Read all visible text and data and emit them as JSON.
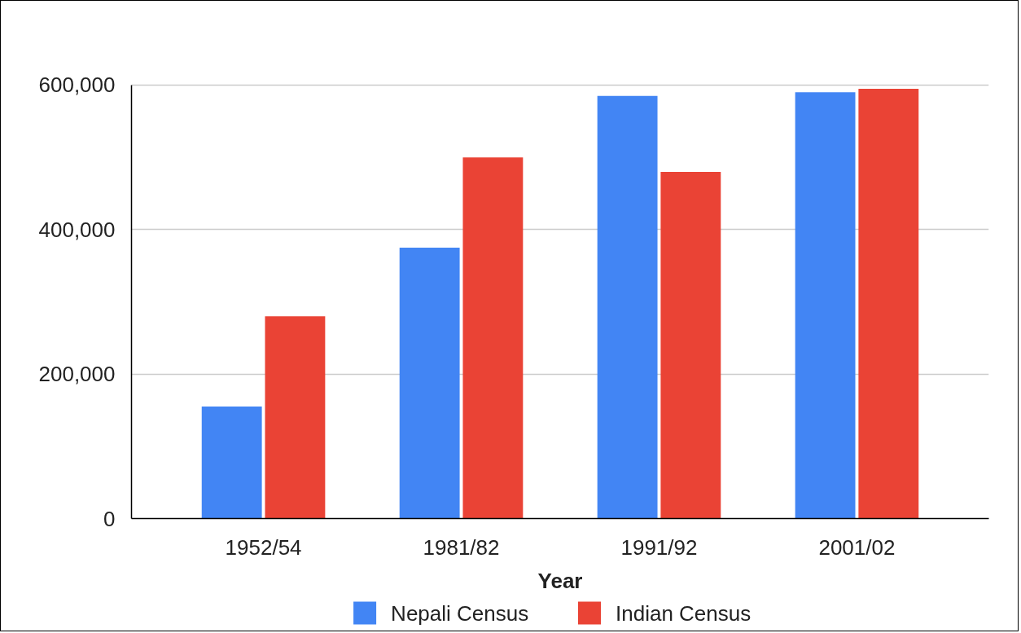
{
  "chart_data": {
    "type": "bar",
    "xlabel": "Year",
    "categories": [
      "1952/54",
      "1981/82",
      "1991/92",
      "2001/02"
    ],
    "series": [
      {
        "name": "Nepali Census",
        "color": "#4285f4",
        "values": [
          155000,
          375000,
          585000,
          590000
        ]
      },
      {
        "name": "Indian Census",
        "color": "#ea4335",
        "values": [
          280000,
          500000,
          480000,
          595000
        ]
      }
    ],
    "ylim": [
      0,
      600000
    ],
    "yticks": [
      0,
      {
        "value": 200000,
        "label": "200,000"
      },
      {
        "value": 400000,
        "label": "400,000"
      },
      {
        "value": 600000,
        "label": "600,000"
      }
    ],
    "grid": "y",
    "legend": "bottom"
  }
}
